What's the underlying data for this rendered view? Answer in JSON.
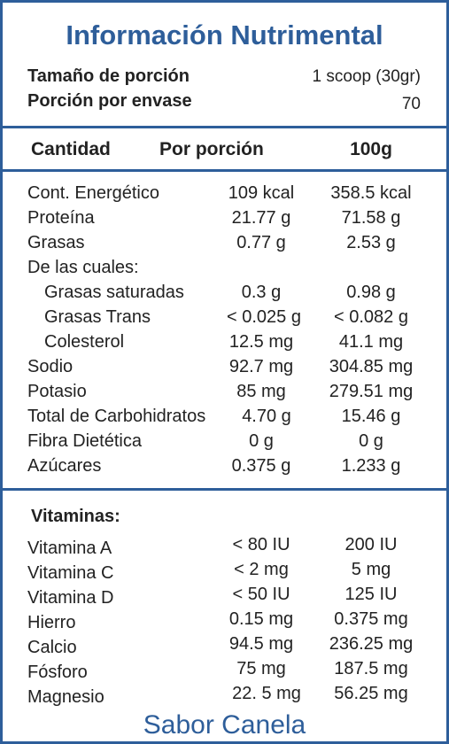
{
  "title": "Información Nutrimental",
  "serving": {
    "size_label": "Tamaño de porción",
    "size_value": "1 scoop (30gr)",
    "per_container_label": "Porción por envase",
    "per_container_value": "70"
  },
  "header": {
    "col1": "Cantidad",
    "col2": "Por porción",
    "col3": "100g"
  },
  "nutrients": [
    {
      "name": "Cont. Energético",
      "per_serving": "109 kcal",
      "per_100g": "358.5 kcal"
    },
    {
      "name": "Proteína",
      "per_serving": "21.77 g",
      "per_100g": "71.58 g"
    },
    {
      "name": "Grasas",
      "per_serving": "0.77 g",
      "per_100g": "2.53 g"
    },
    {
      "name": "De las cuales:",
      "per_serving": "",
      "per_100g": ""
    },
    {
      "name": "Grasas saturadas",
      "per_serving": "0.3 g",
      "per_100g": "0.98 g"
    },
    {
      "name": "Grasas Trans",
      "per_serving": "< 0.025 g",
      "per_100g": "< 0.082 g"
    },
    {
      "name": "Colesterol",
      "per_serving": "12.5 mg",
      "per_100g": "41.1 mg"
    },
    {
      "name": "Sodio",
      "per_serving": "92.7 mg",
      "per_100g": "304.85 mg"
    },
    {
      "name": "Potasio",
      "per_serving": "85 mg",
      "per_100g": "279.51 mg"
    },
    {
      "name": "Total de Carbohidratos",
      "per_serving": "4.70 g",
      "per_100g": "15.46 g"
    },
    {
      "name": "Fibra Dietética",
      "per_serving": "0 g",
      "per_100g": "0 g"
    },
    {
      "name": "Azúcares",
      "per_serving": "0.375 g",
      "per_100g": "1.233 g"
    }
  ],
  "vitamins": {
    "heading": "Vitaminas:",
    "items": [
      {
        "name": "Vitamina A",
        "per_serving": "< 80 IU",
        "per_100g": "200 IU"
      },
      {
        "name": "Vitamina C",
        "per_serving": "< 2 mg",
        "per_100g": "5 mg"
      },
      {
        "name": "Vitamina D",
        "per_serving": "< 50 IU",
        "per_100g": "125 IU"
      },
      {
        "name": "Hierro",
        "per_serving": "0.15 mg",
        "per_100g": "0.375 mg"
      },
      {
        "name": "Calcio",
        "per_serving": "94.5 mg",
        "per_100g": "236.25 mg"
      },
      {
        "name": "Fósforo",
        "per_serving": "75 mg",
        "per_100g": "187.5 mg"
      },
      {
        "name": "Magnesio",
        "per_serving": "22. 5 mg",
        "per_100g": "56.25 mg"
      }
    ]
  },
  "flavor": "Sabor Canela",
  "colors": {
    "accent": "#2e5e9a",
    "text": "#222222"
  }
}
